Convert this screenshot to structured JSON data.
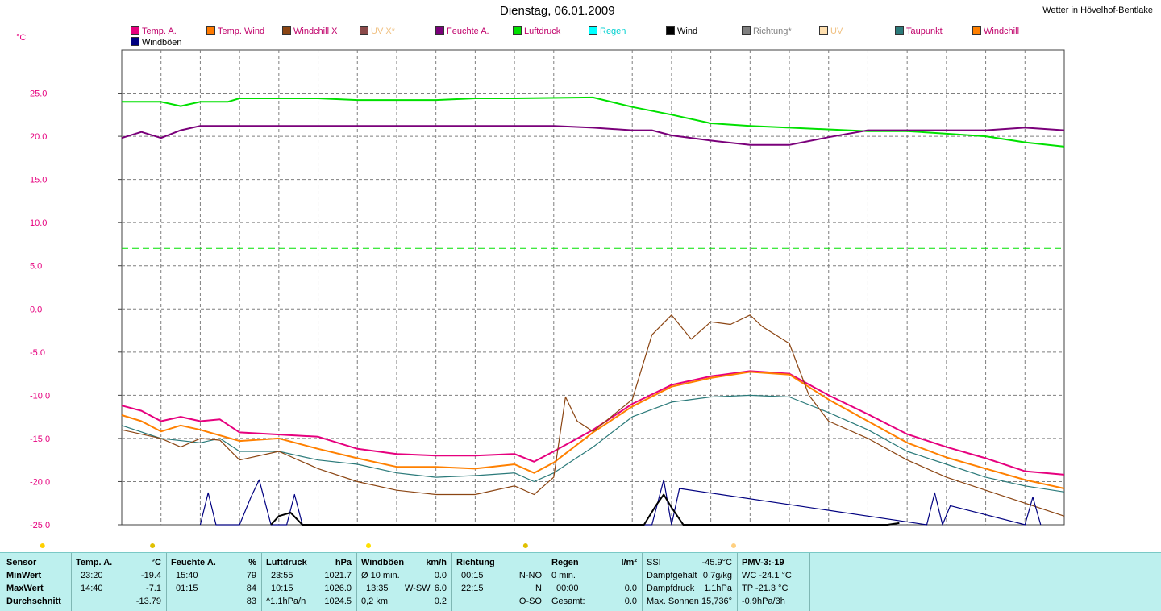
{
  "header": {
    "title": "Dienstag, 06.01.2009",
    "station": "Wetter in Hövelhof-Bentlake"
  },
  "colors": {
    "temp": "#e6007e",
    "tempwind": "#ff7a00",
    "windchillx": "#9b4a00",
    "feuchte": "#7a007a",
    "luftdruck": "#00e000",
    "taupunkt": "#2b7a7a",
    "windchill": "#ff8000",
    "wind": "#000000",
    "windboeen": "#1a1aa0",
    "grid": "#7f7f7f",
    "axis": "#e6007e"
  },
  "legend": [
    {
      "label": "Temp. A.",
      "color": "#e6007e",
      "textcolor": "#c0006a"
    },
    {
      "label": "Temp. Wind",
      "color": "#ff7a00",
      "textcolor": "#c0006a"
    },
    {
      "label": "Windchill X",
      "color": "#8b4513",
      "textcolor": "#c0006a"
    },
    {
      "label": "UV X*",
      "color": "#8b4a4a",
      "textcolor": "#f0c080"
    },
    {
      "label": "Feuchte A.",
      "color": "#7a007a",
      "textcolor": "#c0006a"
    },
    {
      "label": "Luftdruck",
      "color": "#00e000",
      "textcolor": "#c0006a"
    },
    {
      "label": "Regen",
      "color": "#00ffff",
      "textcolor": "#00d0d0"
    },
    {
      "label": "Wind",
      "color": "#000000",
      "textcolor": "#000000"
    },
    {
      "label": "Richtung*",
      "color": "#808080",
      "textcolor": "#808080"
    },
    {
      "label": "UV",
      "color": "#ffe0b0",
      "textcolor": "#f0c080"
    },
    {
      "label": "Taupunkt",
      "color": "#2b7a7a",
      "textcolor": "#c0006a"
    },
    {
      "label": "Windchill",
      "color": "#ff8000",
      "textcolor": "#c0006a"
    },
    {
      "label": "Windböen",
      "color": "#000080",
      "textcolor": "#000000"
    }
  ],
  "chart_data": {
    "type": "line",
    "title": "Dienstag, 06.01.2009",
    "ylabel": "°C",
    "ylim": [
      -25,
      30
    ],
    "yticks": [
      "25.0",
      "20.0",
      "15.0",
      "10.0",
      "5.0",
      "0.0",
      "-5.0",
      "-10.0",
      "-15.0",
      "-20.0",
      "-25.0"
    ],
    "grid": true,
    "x_range_hours": [
      0,
      24
    ],
    "series": [
      {
        "name": "Luftdruck",
        "color": "#00e000",
        "x": [
          0,
          1,
          1.5,
          2,
          2.7,
          3,
          5,
          6,
          8,
          9,
          10,
          12,
          13,
          14,
          15,
          16,
          17,
          19,
          20,
          21,
          22,
          23,
          24
        ],
        "y": [
          24.0,
          24.0,
          23.5,
          24.0,
          24.0,
          24.4,
          24.4,
          24.2,
          24.2,
          24.4,
          24.4,
          24.5,
          23.4,
          22.5,
          21.5,
          21.2,
          21.0,
          20.6,
          20.6,
          20.3,
          20.0,
          19.3,
          18.8
        ]
      },
      {
        "name": "Feuchte A.",
        "color": "#7a007a",
        "x": [
          0,
          0.5,
          1,
          1.5,
          2,
          3,
          5,
          8,
          10,
          11,
          12,
          13,
          13.5,
          14,
          15,
          16,
          17,
          18,
          19,
          21,
          22,
          23,
          24
        ],
        "y": [
          19.8,
          20.5,
          19.8,
          20.7,
          21.2,
          21.2,
          21.2,
          21.2,
          21.2,
          21.2,
          21.0,
          20.7,
          20.7,
          20.1,
          19.5,
          19.0,
          19.0,
          19.9,
          20.7,
          20.7,
          20.7,
          21.0,
          20.7
        ]
      },
      {
        "name": "Temp. A.",
        "color": "#e6007e",
        "x": [
          0,
          0.5,
          1,
          1.5,
          2,
          2.5,
          3,
          5,
          6,
          7,
          8,
          9,
          10,
          10.5,
          11,
          12,
          13,
          14,
          15,
          16,
          17,
          18,
          19,
          20,
          21,
          22,
          23,
          24
        ],
        "y": [
          -11.2,
          -11.8,
          -13.0,
          -12.5,
          -13.0,
          -12.8,
          -14.3,
          -14.8,
          -16.2,
          -16.8,
          -17.0,
          -17.0,
          -16.8,
          -17.7,
          -16.5,
          -14.0,
          -11.0,
          -8.8,
          -7.8,
          -7.2,
          -7.5,
          -10.0,
          -12.2,
          -14.5,
          -16.0,
          -17.3,
          -18.8,
          -19.2
        ]
      },
      {
        "name": "Windchill",
        "color": "#ff8000",
        "x": [
          0,
          0.5,
          1,
          1.5,
          2,
          3,
          4,
          5,
          6,
          7,
          8,
          9,
          10,
          10.5,
          11,
          12,
          13,
          14,
          15,
          16,
          17,
          18,
          19,
          20,
          21,
          22,
          23,
          24
        ],
        "y": [
          -12.3,
          -13.0,
          -14.2,
          -13.5,
          -14.0,
          -15.3,
          -15.0,
          -16.2,
          -17.3,
          -18.3,
          -18.3,
          -18.5,
          -18.0,
          -19.0,
          -17.8,
          -14.3,
          -11.3,
          -9.0,
          -8.0,
          -7.3,
          -7.6,
          -10.5,
          -13.0,
          -15.5,
          -17.2,
          -18.5,
          -19.8,
          -20.8
        ]
      },
      {
        "name": "Taupunkt",
        "color": "#2b7a7a",
        "x": [
          0,
          1,
          2,
          2.5,
          3,
          4,
          5,
          6,
          7,
          8,
          9,
          10,
          10.5,
          11,
          12,
          13,
          14,
          15,
          16,
          17,
          18,
          19,
          20,
          21,
          22,
          23,
          24
        ],
        "y": [
          -13.5,
          -15.0,
          -15.5,
          -15.0,
          -16.5,
          -16.5,
          -17.5,
          -18.0,
          -19.0,
          -19.5,
          -19.3,
          -19.0,
          -20.0,
          -19.0,
          -16.0,
          -12.5,
          -10.8,
          -10.2,
          -10.0,
          -10.2,
          -12.0,
          -14.0,
          -16.5,
          -18.0,
          -19.5,
          -20.5,
          -21.2
        ]
      },
      {
        "name": "Windchill X",
        "color": "#8b4513",
        "x": [
          0,
          1,
          1.5,
          2,
          2.5,
          3,
          4,
          5,
          6,
          7,
          8,
          9,
          10,
          10.5,
          11,
          11.3,
          11.6,
          12,
          13,
          13.5,
          14,
          14.5,
          15,
          15.5,
          16,
          16.3,
          17,
          17.5,
          18,
          19,
          20,
          21,
          22,
          23,
          24
        ],
        "y": [
          -14.0,
          -15.0,
          -16.0,
          -15.0,
          -15.2,
          -17.5,
          -16.5,
          -18.5,
          -20.0,
          -21.0,
          -21.5,
          -21.5,
          -20.5,
          -21.5,
          -19.5,
          -10.2,
          -13.0,
          -14.2,
          -10.5,
          -3.0,
          -0.7,
          -3.5,
          -1.5,
          -1.8,
          -0.7,
          -2.0,
          -4.0,
          -10.0,
          -13.0,
          -15.0,
          -17.5,
          -19.5,
          -21.0,
          -22.5,
          -24.0
        ]
      }
    ],
    "wind_series": [
      {
        "name": "Windböen",
        "color": "#000080",
        "x": [
          2.0,
          2.2,
          2.4,
          3.0,
          3.3,
          3.5,
          3.8,
          4.2,
          4.4,
          4.6,
          13.5,
          13.8,
          14.0,
          14.2,
          20.5,
          20.7,
          20.9,
          21.1,
          23.0,
          23.2,
          23.4
        ],
        "y": [
          -25,
          -21.3,
          -25,
          -25,
          -21.7,
          -19.8,
          -25,
          -25,
          -21.5,
          -25,
          -25,
          -19.8,
          -25,
          -20.8,
          -25,
          -21.3,
          -25,
          -22.8,
          -25,
          -21.8,
          -25
        ]
      },
      {
        "name": "Wind",
        "color": "#000000",
        "x": [
          3.8,
          4.0,
          4.3,
          4.6,
          12.5,
          13.3,
          13.6,
          13.8,
          14.0,
          14.3,
          19.5,
          19.8
        ],
        "y": [
          -25,
          -24.0,
          -23.6,
          -25,
          -25,
          -25,
          -22.8,
          -21.5,
          -23.0,
          -25,
          -25,
          -24.8
        ]
      }
    ],
    "reference_line": {
      "y": 7.0,
      "color": "#00e000",
      "style": "dashed"
    }
  },
  "stats": {
    "sensor": {
      "header": "Sensor",
      "min": "MinWert",
      "max": "MaxWert",
      "avg": "Durchschnitt"
    },
    "temp": {
      "header": "Temp. A.",
      "unit": "°C",
      "min_time": "23:20",
      "min_val": "-19.4",
      "max_time": "14:40",
      "max_val": "-7.1",
      "avg_val": "-13.79"
    },
    "feuchte": {
      "header": "Feuchte A.",
      "unit": "%",
      "min_time": "15:40",
      "min_val": "79",
      "max_time": "01:15",
      "max_val": "84",
      "avg_val": "83"
    },
    "luftdruck": {
      "header": "Luftdruck",
      "unit": "hPa",
      "min_time": "23:55",
      "min_val": "1021.7",
      "max_time": "10:15",
      "max_val": "1026.0",
      "avg_time": "^1.1hPa/h",
      "avg_val": "1024.5"
    },
    "windboeen": {
      "header": "Windböen",
      "unit": "km/h",
      "min_time": "Ø 10 min.",
      "min_val": "0.0",
      "max_time": "13:35",
      "max_dir": "W-SW",
      "max_val": "6.0",
      "avg_time": "0,2 km",
      "avg_val": "0.2"
    },
    "richtung": {
      "header": "Richtung",
      "min_time": "00:15",
      "min_val": "N-NO",
      "max_time": "22:15",
      "max_val": "N",
      "avg_val": "O-SO"
    },
    "regen": {
      "header": "Regen",
      "unit": "l/m²",
      "min_time": "0 min.",
      "max_time": "00:00",
      "max_val": "0.0",
      "avg_time": "Gesamt:",
      "avg_val": "0.0"
    },
    "ssi": {
      "r1_label": "SSI",
      "r1_val": "-45.9°C",
      "r2_label": "Dampfgehalt",
      "r2_val": "0.7g/kg",
      "r3_label": "Dampfdruck",
      "r3_val": "1.1hPa",
      "r4_label": "Max. Sonnen",
      "r4_val": "15,736°"
    },
    "pmv": {
      "header": "PMV-3:-19",
      "wc": "WC -24.1 °C",
      "tp": "TP -21.3 °C",
      "trend": "-0.9hPa/3h"
    }
  }
}
